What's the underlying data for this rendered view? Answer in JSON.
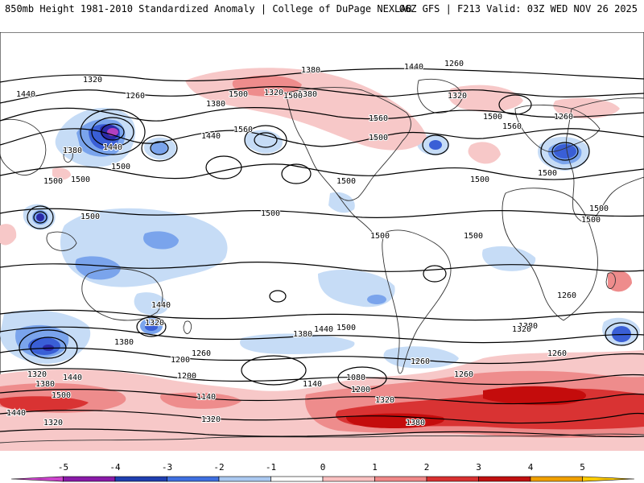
{
  "header": {
    "left": "850mb Height 1981-2010 Standardized Anomaly | College of DuPage NEXLAB",
    "right": "06Z GFS | F213 Valid: 03Z WED NOV 26 2025"
  },
  "contour_labels": [
    "1320",
    "1260",
    "1380",
    "1440",
    "1500",
    "1320",
    "1380",
    "1440",
    "1260",
    "1500",
    "1320",
    "1380",
    "1500",
    "1260",
    "1560",
    "1560",
    "1380",
    "1440",
    "1500",
    "1440",
    "1560",
    "1500",
    "1500",
    "1500",
    "1500",
    "1500",
    "1500",
    "1500",
    "1500",
    "1500",
    "1500",
    "1500",
    "1440",
    "1320",
    "1380",
    "1500",
    "1440",
    "1380",
    "1320",
    "1260",
    "1200",
    "1260",
    "1200",
    "1320",
    "1440",
    "1380",
    "1500",
    "1440",
    "1260",
    "1140",
    "1080",
    "1200",
    "1320",
    "1260",
    "1380",
    "1320",
    "1320",
    "1380",
    "1140",
    "1500",
    "1260"
  ],
  "colorbar": {
    "ticks": [
      "-5",
      "-4",
      "-3",
      "-2",
      "-1",
      "0",
      "1",
      "2",
      "3",
      "4",
      "5"
    ],
    "colors": [
      "#cc44cc",
      "#8a1aa8",
      "#1f3fb0",
      "#3f6fe0",
      "#aac8f0",
      "#ffffff",
      "#f9c0c0",
      "#f08888",
      "#d83030",
      "#c01010",
      "#f0a000",
      "#ffcc00"
    ]
  },
  "map_colors": {
    "neg1": "#c6dcf6",
    "neg2": "#7aa4ec",
    "neg3": "#3a5fd6",
    "neg4": "#2a2aa8",
    "neg5": "#b040c0",
    "pos1": "#f7c8c8",
    "pos2": "#ee8c8c",
    "pos3": "#d93333",
    "pos4": "#c40c0c"
  }
}
